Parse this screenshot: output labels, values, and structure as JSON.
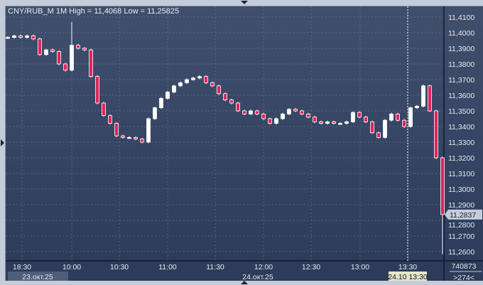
{
  "chart_data": {
    "type": "candlestick",
    "title": "CNY/RUB_M 1M High = 11,4068 Low = 11,25825",
    "symbol": "CNY/RUB_M",
    "timeframe": "1M",
    "high": 11.4068,
    "low": 11.25825,
    "ylim": [
      11.255,
      11.412
    ],
    "y_ticks": [
      "11,4100",
      "11,4000",
      "11,3900",
      "11,3800",
      "11,3700",
      "11,3600",
      "11,3500",
      "11,3400",
      "11,3300",
      "11,3200",
      "11,3100",
      "11,3000",
      "11,2900",
      "11,2800",
      "11,2700",
      "11,2600"
    ],
    "x_ticks": [
      "18:30",
      "10:00",
      "10:30",
      "11:00",
      "11:30",
      "12:00",
      "12:30",
      "13:00",
      "13:30"
    ],
    "date_labels": [
      "23.окт.25",
      "24.окт.25"
    ],
    "closes": [
      11.397,
      11.398,
      11.397,
      11.398,
      11.396,
      11.386,
      11.389,
      11.388,
      11.38,
      11.376,
      11.392,
      11.39,
      11.389,
      11.372,
      11.355,
      11.347,
      11.342,
      11.334,
      11.333,
      11.333,
      11.332,
      11.33,
      11.345,
      11.352,
      11.358,
      11.362,
      11.366,
      11.368,
      11.37,
      11.371,
      11.372,
      11.368,
      11.366,
      11.361,
      11.357,
      11.355,
      11.35,
      11.348,
      11.35,
      11.348,
      11.345,
      11.342,
      11.345,
      11.348,
      11.351,
      11.35,
      11.348,
      11.346,
      11.343,
      11.342,
      11.343,
      11.342,
      11.342,
      11.343,
      11.349,
      11.346,
      11.343,
      11.336,
      11.333,
      11.344,
      11.348,
      11.344,
      11.34,
      11.352,
      11.353,
      11.366,
      11.35,
      11.32,
      11.2837
    ],
    "last_price_label": "11,2837",
    "crosshair_time_label": "24.10 13:30",
    "volume_label": "740873",
    "bars_label": ">274<",
    "grid": true,
    "colors": {
      "background": "#34446a",
      "up": "#ffffff",
      "down": "#e0245a",
      "grid": "#6d7c98",
      "text": "#e4e8f0"
    }
  }
}
